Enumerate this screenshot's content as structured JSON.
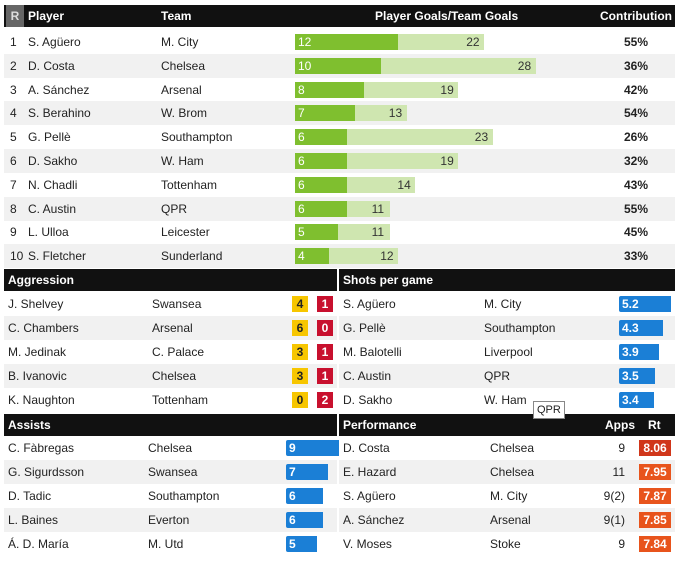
{
  "top": {
    "headers": {
      "rank": "R",
      "player": "Player",
      "team": "Team",
      "goals": "Player Goals/Team Goals",
      "contribution": "Contribution"
    },
    "rows": [
      {
        "rank": "1",
        "player": "S. Agüero",
        "team": "M. City",
        "player_goals": 12,
        "team_goals": 22,
        "contribution": "55%"
      },
      {
        "rank": "2",
        "player": "D. Costa",
        "team": "Chelsea",
        "player_goals": 10,
        "team_goals": 28,
        "contribution": "36%"
      },
      {
        "rank": "3",
        "player": "A. Sánchez",
        "team": "Arsenal",
        "player_goals": 8,
        "team_goals": 19,
        "contribution": "42%"
      },
      {
        "rank": "4",
        "player": "S. Berahino",
        "team": "W. Brom",
        "player_goals": 7,
        "team_goals": 13,
        "contribution": "54%"
      },
      {
        "rank": "5",
        "player": "G. Pellè",
        "team": "Southampton",
        "player_goals": 6,
        "team_goals": 23,
        "contribution": "26%"
      },
      {
        "rank": "6",
        "player": "D. Sakho",
        "team": "W. Ham",
        "player_goals": 6,
        "team_goals": 19,
        "contribution": "32%"
      },
      {
        "rank": "7",
        "player": "N. Chadli",
        "team": "Tottenham",
        "player_goals": 6,
        "team_goals": 14,
        "contribution": "43%"
      },
      {
        "rank": "8",
        "player": "C. Austin",
        "team": "QPR",
        "player_goals": 6,
        "team_goals": 11,
        "contribution": "55%"
      },
      {
        "rank": "9",
        "player": "L. Ulloa",
        "team": "Leicester",
        "player_goals": 5,
        "team_goals": 11,
        "contribution": "45%"
      },
      {
        "rank": "10",
        "player": "S. Fletcher",
        "team": "Sunderland",
        "player_goals": 4,
        "team_goals": 12,
        "contribution": "33%"
      }
    ]
  },
  "aggression": {
    "title": "Aggression",
    "rows": [
      {
        "player": "J. Shelvey",
        "team": "Swansea",
        "yellow": "4",
        "red": "1"
      },
      {
        "player": "C. Chambers",
        "team": "Arsenal",
        "yellow": "6",
        "red": "0"
      },
      {
        "player": "M. Jedinak",
        "team": "C. Palace",
        "yellow": "3",
        "red": "1"
      },
      {
        "player": "B. Ivanovic",
        "team": "Chelsea",
        "yellow": "3",
        "red": "1"
      },
      {
        "player": "K. Naughton",
        "team": "Tottenham",
        "yellow": "0",
        "red": "2"
      }
    ]
  },
  "shots": {
    "title": "Shots per game",
    "rows": [
      {
        "player": "S. Agüero",
        "team": "M. City",
        "value": "5.2"
      },
      {
        "player": "G. Pellè",
        "team": "Southampton",
        "value": "4.3"
      },
      {
        "player": "M. Balotelli",
        "team": "Liverpool",
        "value": "3.9"
      },
      {
        "player": "C. Austin",
        "team": "QPR",
        "value": "3.5"
      },
      {
        "player": "D. Sakho",
        "team": "W. Ham",
        "value": "3.4"
      }
    ],
    "tooltip": "QPR"
  },
  "assists": {
    "title": "Assists",
    "rows": [
      {
        "player": "C. Fàbregas",
        "team": "Chelsea",
        "value": "9"
      },
      {
        "player": "G. Sigurdsson",
        "team": "Swansea",
        "value": "7"
      },
      {
        "player": "D. Tadic",
        "team": "Southampton",
        "value": "6"
      },
      {
        "player": "L. Baines",
        "team": "Everton",
        "value": "6"
      },
      {
        "player": "Á. D. María",
        "team": "M. Utd",
        "value": "5"
      }
    ]
  },
  "performance": {
    "title": "Performance",
    "apps_label": "Apps",
    "rt_label": "Rt",
    "rows": [
      {
        "player": "D. Costa",
        "team": "Chelsea",
        "apps": "9",
        "rating": "8.06"
      },
      {
        "player": "E. Hazard",
        "team": "Chelsea",
        "apps": "11",
        "rating": "7.95"
      },
      {
        "player": "S. Agüero",
        "team": "M. City",
        "apps": "9(2)",
        "rating": "7.87"
      },
      {
        "player": "A. Sánchez",
        "team": "Arsenal",
        "apps": "9(1)",
        "rating": "7.85"
      },
      {
        "player": "V. Moses",
        "team": "Stoke",
        "apps": "9",
        "rating": "7.84"
      }
    ]
  },
  "colors": {
    "header_bg": "#111111",
    "player_bar": "#7fbf2f",
    "team_bar": "#cfe6b0",
    "yellow_card": "#f7c600",
    "red_card": "#c8102e",
    "blue_bar": "#1b7fd6",
    "rating_orange": "#e8541c",
    "rating_red": "#d0361a"
  }
}
